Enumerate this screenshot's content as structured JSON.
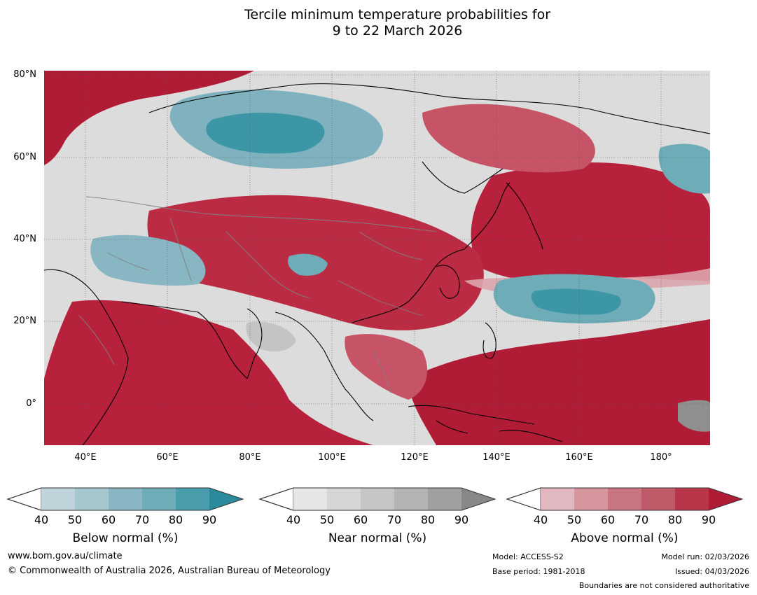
{
  "title": {
    "line1": "Tercile minimum temperature probabilities for",
    "line2": "9 to 22 March 2026"
  },
  "map": {
    "lat_labels": [
      "80°N",
      "60°N",
      "40°N",
      "20°N",
      "0°"
    ],
    "lon_labels": [
      "40°E",
      "60°E",
      "80°E",
      "100°E",
      "120°E",
      "140°E",
      "160°E",
      "180°"
    ]
  },
  "legends": [
    {
      "title": "Below normal (%)",
      "ticks": [
        "40",
        "50",
        "60",
        "70",
        "80",
        "90"
      ],
      "colors": [
        "#bfd3da",
        "#a4c6cd",
        "#88b6c2",
        "#6eacb8",
        "#4a9dac",
        "#2b8a9c"
      ]
    },
    {
      "title": "Near normal (%)",
      "ticks": [
        "40",
        "50",
        "60",
        "70",
        "80",
        "90"
      ],
      "colors": [
        "#e6e6e6",
        "#d6d6d6",
        "#c6c6c6",
        "#b4b4b4",
        "#a0a0a0",
        "#888888"
      ]
    },
    {
      "title": "Above normal (%)",
      "ticks": [
        "40",
        "50",
        "60",
        "70",
        "80",
        "90"
      ],
      "colors": [
        "#e1b8bf",
        "#d5969e",
        "#c97581",
        "#bf5a68",
        "#b7364a",
        "#b01b36"
      ]
    }
  ],
  "footer": {
    "website": "www.bom.gov.au/climate",
    "copyright": "© Commonwealth of Australia 2026, Australian Bureau of Meteorology",
    "model": "Model: ACCESS-S2",
    "base_period": "Base period: 1981-2018",
    "model_run": "Model run: 02/03/2026",
    "issued": "Issued: 04/03/2026",
    "disclaimer": "Boundaries are not considered authoritative"
  },
  "colors": {
    "above_strong": "#b01b36",
    "above_mid": "#c65466",
    "above_light": "#dba5ad",
    "near_light": "#e2e2e2",
    "near_mid": "#c4c4c4",
    "near_dark": "#8f8f8f",
    "below_light": "#bcd2d9",
    "below_mid": "#7fb2be",
    "below_dark": "#3c96a6"
  }
}
